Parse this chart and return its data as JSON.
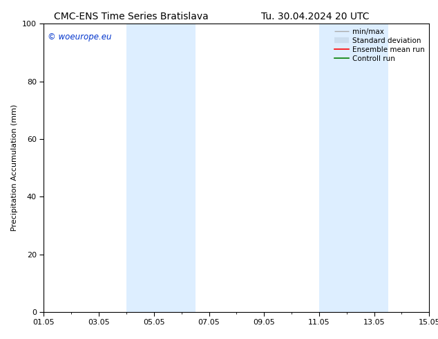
{
  "title_left": "CMC-ENS Time Series Bratislava",
  "title_right": "Tu. 30.04.2024 20 UTC",
  "ylabel": "Precipitation Accumulation (mm)",
  "ylim": [
    0,
    100
  ],
  "yticks": [
    0,
    20,
    40,
    60,
    80,
    100
  ],
  "xlim_start": 0,
  "xlim_end": 14,
  "xtick_labels": [
    "01.05",
    "03.05",
    "05.05",
    "07.05",
    "09.05",
    "11.05",
    "13.05",
    "15.05"
  ],
  "xtick_positions": [
    0,
    2,
    4,
    6,
    8,
    10,
    12,
    14
  ],
  "shaded_regions": [
    {
      "x_start": 3.0,
      "x_end": 5.5,
      "color": "#ddeeff"
    },
    {
      "x_start": 10.0,
      "x_end": 12.5,
      "color": "#ddeeff"
    }
  ],
  "watermark_text": "© woeurope.eu",
  "watermark_color": "#0033cc",
  "legend_entries": [
    {
      "label": "min/max",
      "color": "#aaaaaa",
      "linewidth": 1.0
    },
    {
      "label": "Standard deviation",
      "color": "#ccddee",
      "linewidth": 6
    },
    {
      "label": "Ensemble mean run",
      "color": "red",
      "linewidth": 1.2
    },
    {
      "label": "Controll run",
      "color": "green",
      "linewidth": 1.2
    }
  ],
  "background_color": "#ffffff",
  "title_fontsize": 10,
  "axis_fontsize": 8,
  "tick_fontsize": 8,
  "legend_fontsize": 7.5
}
